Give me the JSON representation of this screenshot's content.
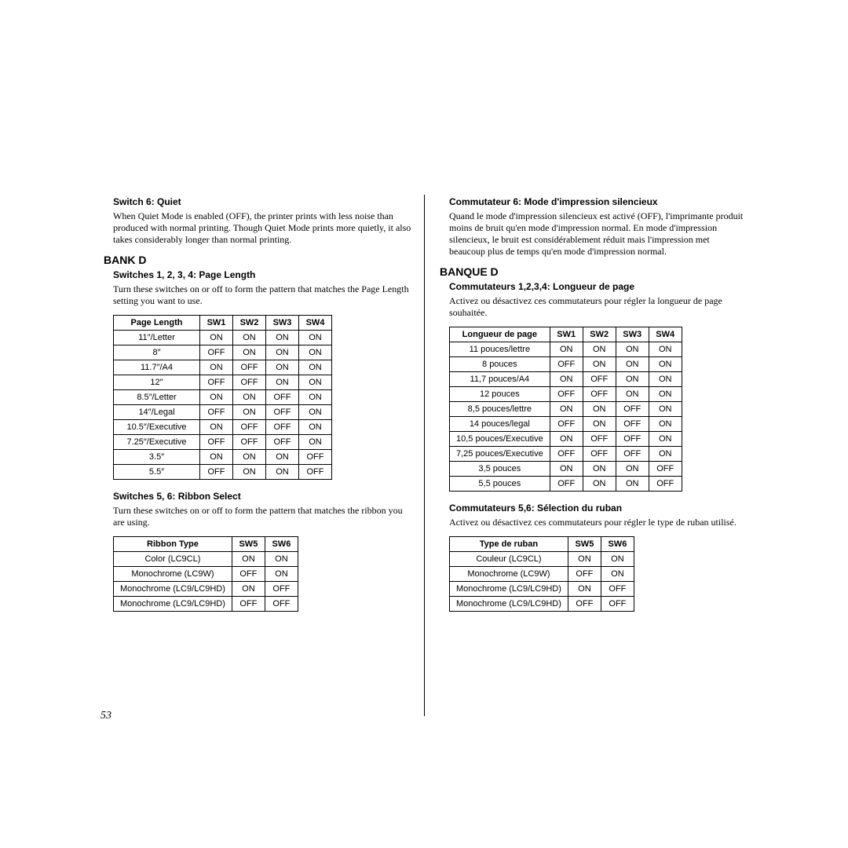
{
  "left": {
    "switch6_title": "Switch 6: Quiet",
    "switch6_body": "When Quiet Mode is enabled (OFF), the printer prints with less noise than produced with normal printing. Though Quiet Mode prints more quietly, it also takes considerably longer than normal printing.",
    "bank": "BANK D",
    "pl_title": "Switches 1, 2, 3, 4: Page Length",
    "pl_body": "Turn these switches on or off to form the pattern that matches the Page Length setting you want to use.",
    "pl_headers": [
      "Page Length",
      "SW1",
      "SW2",
      "SW3",
      "SW4"
    ],
    "pl_rows": [
      [
        "11″/Letter",
        "ON",
        "ON",
        "ON",
        "ON"
      ],
      [
        "8″",
        "OFF",
        "ON",
        "ON",
        "ON"
      ],
      [
        "11.7″/A4",
        "ON",
        "OFF",
        "ON",
        "ON"
      ],
      [
        "12″",
        "OFF",
        "OFF",
        "ON",
        "ON"
      ],
      [
        "8.5″/Letter",
        "ON",
        "ON",
        "OFF",
        "ON"
      ],
      [
        "14″/Legal",
        "OFF",
        "ON",
        "OFF",
        "ON"
      ],
      [
        "10.5″/Executive",
        "ON",
        "OFF",
        "OFF",
        "ON"
      ],
      [
        "7.25″/Executive",
        "OFF",
        "OFF",
        "OFF",
        "ON"
      ],
      [
        "3.5″",
        "ON",
        "ON",
        "ON",
        "OFF"
      ],
      [
        "5.5″",
        "OFF",
        "ON",
        "ON",
        "OFF"
      ]
    ],
    "rb_title": "Switches 5, 6: Ribbon Select",
    "rb_body": "Turn these switches on or off to form the pattern that matches the ribbon you are using.",
    "rb_headers": [
      "Ribbon Type",
      "SW5",
      "SW6"
    ],
    "rb_rows": [
      [
        "Color (LC9CL)",
        "ON",
        "ON"
      ],
      [
        "Monochrome (LC9W)",
        "OFF",
        "ON"
      ],
      [
        "Monochrome (LC9/LC9HD)",
        "ON",
        "OFF"
      ],
      [
        "Monochrome (LC9/LC9HD)",
        "OFF",
        "OFF"
      ]
    ]
  },
  "right": {
    "switch6_title": "Commutateur 6: Mode d'impression silencieux",
    "switch6_body": "Quand le mode d'impression silencieux est activé (OFF), l'imprimante produit moins de bruit qu'en mode d'impression normal. En mode d'impression silencieux, le bruit est considérablement réduit mais l'impression met beaucoup plus de temps qu'en mode d'impression normal.",
    "bank": "BANQUE D",
    "pl_title": "Commutateurs 1,2,3,4: Longueur de page",
    "pl_body": "Activez ou désactivez ces commutateurs pour régler la longueur de page souhaitée.",
    "pl_headers": [
      "Longueur de page",
      "SW1",
      "SW2",
      "SW3",
      "SW4"
    ],
    "pl_rows": [
      [
        "11 pouces/lettre",
        "ON",
        "ON",
        "ON",
        "ON"
      ],
      [
        "8 pouces",
        "OFF",
        "ON",
        "ON",
        "ON"
      ],
      [
        "11,7 pouces/A4",
        "ON",
        "OFF",
        "ON",
        "ON"
      ],
      [
        "12 pouces",
        "OFF",
        "OFF",
        "ON",
        "ON"
      ],
      [
        "8,5 pouces/lettre",
        "ON",
        "ON",
        "OFF",
        "ON"
      ],
      [
        "14 pouces/legal",
        "OFF",
        "ON",
        "OFF",
        "ON"
      ],
      [
        "10,5 pouces/Executive",
        "ON",
        "OFF",
        "OFF",
        "ON"
      ],
      [
        "7,25 pouces/Executive",
        "OFF",
        "OFF",
        "OFF",
        "ON"
      ],
      [
        "3,5 pouces",
        "ON",
        "ON",
        "ON",
        "OFF"
      ],
      [
        "5,5 pouces",
        "OFF",
        "ON",
        "ON",
        "OFF"
      ]
    ],
    "rb_title": "Commutateurs 5,6: Sélection du ruban",
    "rb_body": "Activez ou désactivez ces commutateurs pour régler le type de ruban utilisé.",
    "rb_headers": [
      "Type de ruban",
      "SW5",
      "SW6"
    ],
    "rb_rows": [
      [
        "Couleur (LC9CL)",
        "ON",
        "ON"
      ],
      [
        "Monochrome (LC9W)",
        "OFF",
        "ON"
      ],
      [
        "Monochrome (LC9/LC9HD)",
        "ON",
        "OFF"
      ],
      [
        "Monochrome (LC9/LC9HD)",
        "OFF",
        "OFF"
      ]
    ]
  },
  "pagenum": "53",
  "style": {
    "table_border": "#000000",
    "font_body": "Times New Roman",
    "font_headings": "Arial"
  }
}
